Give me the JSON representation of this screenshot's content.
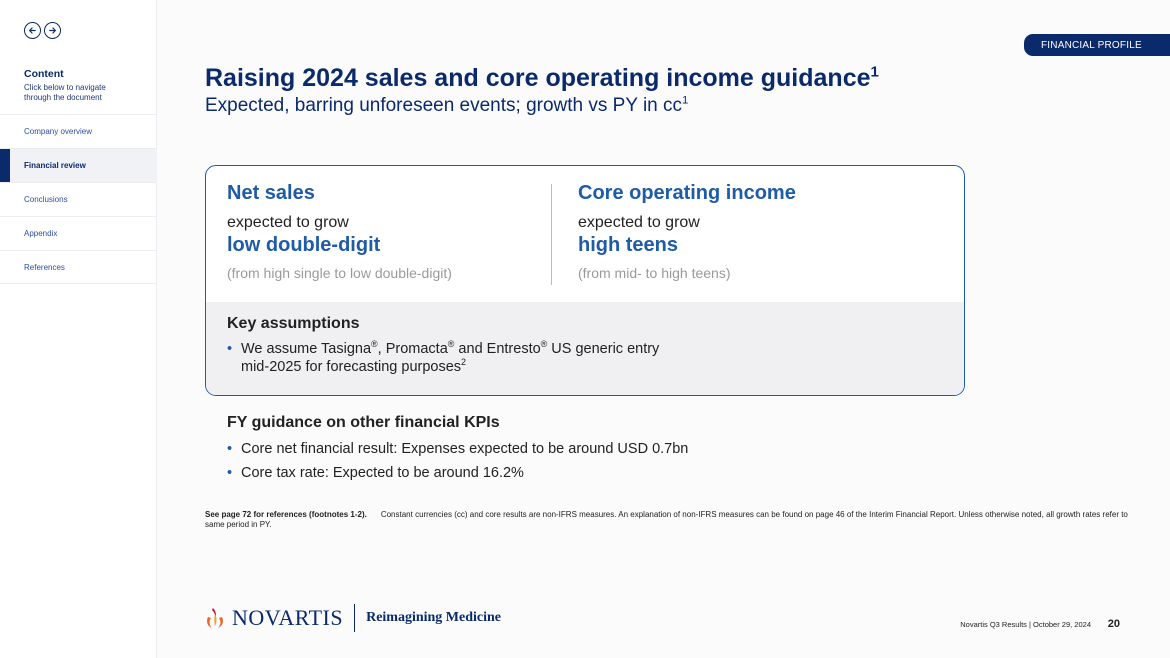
{
  "sidebar": {
    "content_label": "Content",
    "content_sub": "Click below to navigate through the document",
    "items": [
      {
        "label": "Company overview"
      },
      {
        "label": "Financial review"
      },
      {
        "label": "Conclusions"
      },
      {
        "label": "Appendix"
      },
      {
        "label": "References"
      }
    ],
    "active_item": "Financial review",
    "prev_icon": "arrow-left-icon",
    "next_icon": "arrow-right-icon"
  },
  "header": {
    "badge": "FINANCIAL PROFILE",
    "title": "Raising 2024 sales and core operating income guidance",
    "title_sup": "1",
    "subtitle": "Expected, barring unforeseen events; growth vs PY in cc",
    "subtitle_sup": "1"
  },
  "card": {
    "left": {
      "heading": "Net sales",
      "expected": "expected to grow",
      "value": "low double-digit",
      "note": "(from high single to low double-digit)"
    },
    "right": {
      "heading": "Core operating income",
      "expected": "expected to grow",
      "value": "high teens",
      "note": "(from mid- to high teens)"
    },
    "assumptions": {
      "title": "Key assumptions",
      "t1": "We assume Tasigna",
      "t2": ", Promacta",
      "t3": " and Entresto",
      "t4": " US generic entry mid-2025 for forecasting purposes",
      "reg": "®",
      "sup": "2"
    }
  },
  "kpis": {
    "title": "FY guidance on other financial KPIs",
    "items": [
      "Core net financial result: Expenses expected to be around USD 0.7bn",
      "Core tax rate: Expected to be around 16.2%"
    ]
  },
  "footnote": {
    "bold": "See page 72 for references (footnotes 1-2).",
    "text": "Constant currencies (cc) and core results are non-IFRS measures. An explanation of non-IFRS measures can be found on page 46 of the Interim Financial Report. Unless otherwise noted, all growth rates refer to same period in PY."
  },
  "footer": {
    "logo_text": "NOVARTIS",
    "tagline": "Reimagining Medicine",
    "info": "Novartis Q3 Results | October 29, 2024",
    "page": "20"
  },
  "colors": {
    "navy": "#0a2a6b",
    "blue": "#1e5ba8",
    "logo_orange": "#e8692a",
    "logo_red": "#c8102e"
  }
}
